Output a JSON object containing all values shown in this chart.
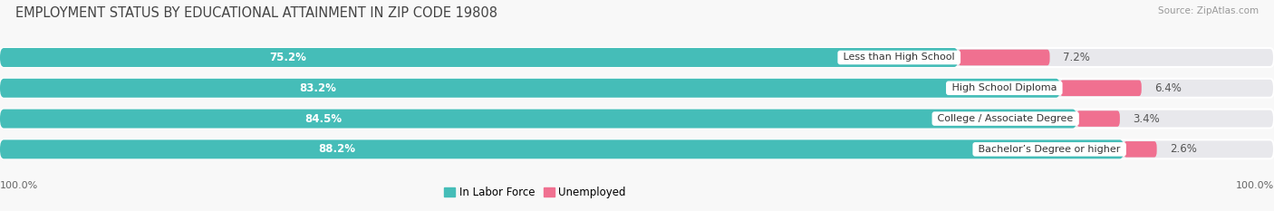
{
  "title": "EMPLOYMENT STATUS BY EDUCATIONAL ATTAINMENT IN ZIP CODE 19808",
  "source": "Source: ZipAtlas.com",
  "categories": [
    "Less than High School",
    "High School Diploma",
    "College / Associate Degree",
    "Bachelor’s Degree or higher"
  ],
  "labor_force": [
    75.2,
    83.2,
    84.5,
    88.2
  ],
  "unemployed": [
    7.2,
    6.4,
    3.4,
    2.6
  ],
  "labor_force_color": "#45BDB8",
  "unemployed_color": "#F07090",
  "bar_bg_color": "#E8E8EC",
  "background_color": "#F8F8F8",
  "title_fontsize": 10.5,
  "source_fontsize": 7.5,
  "bar_label_fontsize": 8.5,
  "category_fontsize": 8,
  "legend_fontsize": 8.5,
  "axis_label_fontsize": 8,
  "x_left_label": "100.0%",
  "x_right_label": "100.0%"
}
